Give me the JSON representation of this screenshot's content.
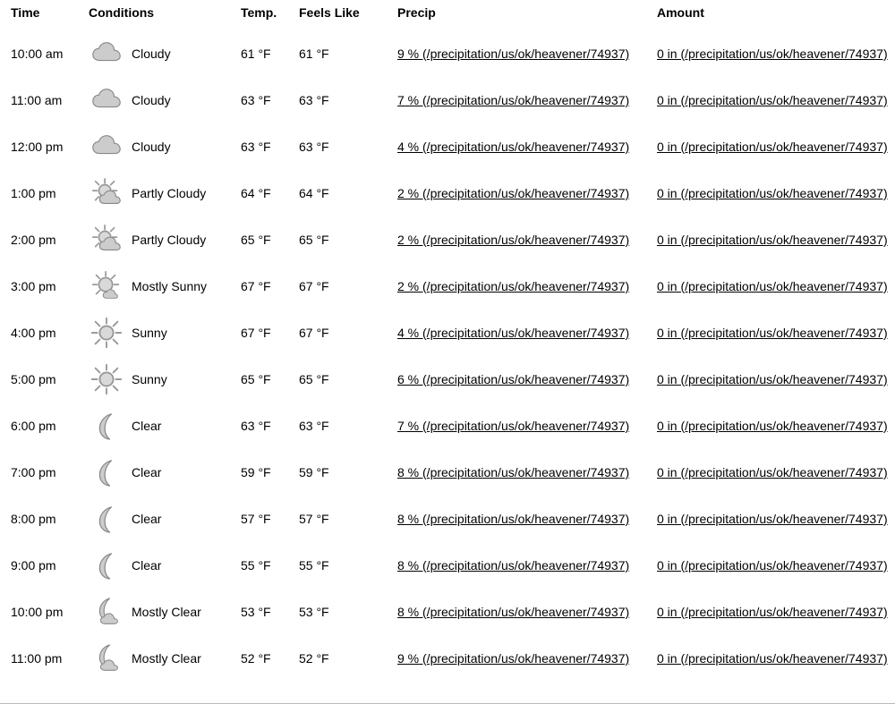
{
  "headers": {
    "time": "Time",
    "conditions": "Conditions",
    "temp": "Temp.",
    "feels": "Feels Like",
    "precip": "Precip",
    "amount": "Amount"
  },
  "link_suffix": " (/precipitation/us/ok/heavener/74937)",
  "colors": {
    "icon_fill": "#cccccc",
    "icon_stroke": "#888888",
    "sun_fill": "#d9d9d9",
    "sun_stroke": "#999999",
    "link": "#000000",
    "text": "#000000",
    "divider": "#bbbbbb",
    "background": "#ffffff"
  },
  "rows": [
    {
      "time": "10:00 am",
      "condition": "Cloudy",
      "icon": "cloudy",
      "temp": "61 °F",
      "feels": "61 °F",
      "precip": "9 %",
      "amount": "0 in"
    },
    {
      "time": "11:00 am",
      "condition": "Cloudy",
      "icon": "cloudy",
      "temp": "63 °F",
      "feels": "63 °F",
      "precip": "7 %",
      "amount": "0 in"
    },
    {
      "time": "12:00 pm",
      "condition": "Cloudy",
      "icon": "cloudy",
      "temp": "63 °F",
      "feels": "63 °F",
      "precip": "4 %",
      "amount": "0 in"
    },
    {
      "time": "1:00 pm",
      "condition": "Partly Cloudy",
      "icon": "partly-cloudy",
      "temp": "64 °F",
      "feels": "64 °F",
      "precip": "2 %",
      "amount": "0 in"
    },
    {
      "time": "2:00 pm",
      "condition": "Partly Cloudy",
      "icon": "partly-cloudy",
      "temp": "65 °F",
      "feels": "65 °F",
      "precip": "2 %",
      "amount": "0 in"
    },
    {
      "time": "3:00 pm",
      "condition": "Mostly Sunny",
      "icon": "mostly-sunny",
      "temp": "67 °F",
      "feels": "67 °F",
      "precip": "2 %",
      "amount": "0 in"
    },
    {
      "time": "4:00 pm",
      "condition": "Sunny",
      "icon": "sunny",
      "temp": "67 °F",
      "feels": "67 °F",
      "precip": "4 %",
      "amount": "0 in"
    },
    {
      "time": "5:00 pm",
      "condition": "Sunny",
      "icon": "sunny",
      "temp": "65 °F",
      "feels": "65 °F",
      "precip": "6 %",
      "amount": "0 in"
    },
    {
      "time": "6:00 pm",
      "condition": "Clear",
      "icon": "clear-night",
      "temp": "63 °F",
      "feels": "63 °F",
      "precip": "7 %",
      "amount": "0 in"
    },
    {
      "time": "7:00 pm",
      "condition": "Clear",
      "icon": "clear-night",
      "temp": "59 °F",
      "feels": "59 °F",
      "precip": "8 %",
      "amount": "0 in"
    },
    {
      "time": "8:00 pm",
      "condition": "Clear",
      "icon": "clear-night",
      "temp": "57 °F",
      "feels": "57 °F",
      "precip": "8 %",
      "amount": "0 in"
    },
    {
      "time": "9:00 pm",
      "condition": "Clear",
      "icon": "clear-night",
      "temp": "55 °F",
      "feels": "55 °F",
      "precip": "8 %",
      "amount": "0 in"
    },
    {
      "time": "10:00 pm",
      "condition": "Mostly Clear",
      "icon": "mostly-clear-night",
      "temp": "53 °F",
      "feels": "53 °F",
      "precip": "8 %",
      "amount": "0 in"
    },
    {
      "time": "11:00 pm",
      "condition": "Mostly Clear",
      "icon": "mostly-clear-night",
      "temp": "52 °F",
      "feels": "52 °F",
      "precip": "9 %",
      "amount": "0 in"
    }
  ]
}
